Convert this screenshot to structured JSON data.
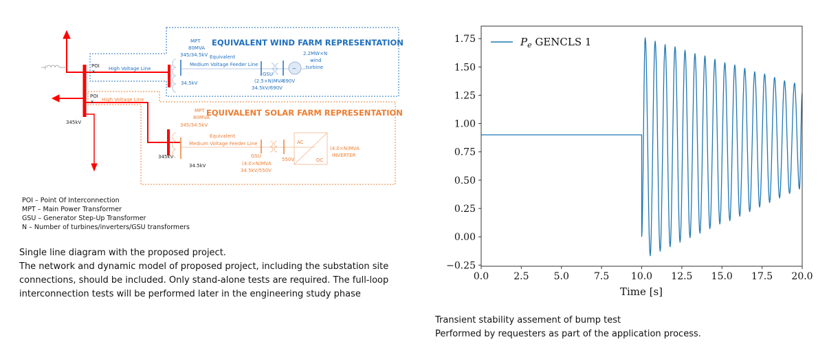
{
  "diagram": {
    "poi_top": "POI",
    "poi_bottom": "POI",
    "x_mark": "x",
    "hv_line_wind": "High Voltage Line",
    "hv_line_solar": "High Voltage Line",
    "bus_345kv_left": "345kV",
    "wind": {
      "title": "EQUIVALENT WIND FARM REPRESENTATION",
      "mpt": [
        "MPT",
        "80MVA",
        "345/34.5kV"
      ],
      "mv_bus": "34.5kV",
      "feeder": [
        "Equivalent",
        "Medium Voltage Feeder Line"
      ],
      "gsu": [
        "GSU",
        "(2.5×N)MVA",
        "34.5kV/690V"
      ],
      "lv_bus": "690V",
      "turbine": [
        "2.2MW×N",
        "wind",
        "turbine"
      ],
      "generator_symbol": "~"
    },
    "solar": {
      "title": "EQUIVALENT SOLAR FARM REPRESENTATION",
      "mpt": [
        "MPT",
        "80MVA",
        "345/34.5kV"
      ],
      "hv_bus": "345kV",
      "mv_bus": "34.5kV",
      "feeder": [
        "Equivalent",
        "Medium Voltage Feeder Line"
      ],
      "gsu": [
        "GSU",
        "(4.0×N)MVA",
        "34.5kV/550V"
      ],
      "lv_bus": "550V",
      "inverter_ac": "AC",
      "inverter_dc": "DC",
      "inverter": [
        "(4.0×N)MVA",
        "INVERTER"
      ]
    },
    "colors": {
      "wind": "#1f6fbf",
      "solar": "#ed7d31",
      "grid": "#ff0000"
    }
  },
  "abbreviations": [
    "POI – Point Of Interconnection",
    "MPT – Main Power Transformer",
    "GSU – Generator Step-Up Transformer",
    "N – Number of turbines/inverters/GSU transformers"
  ],
  "left_caption": [
    "Single line diagram with the proposed project.",
    "The network and dynamic model of proposed project, including the substation site",
    "connections, should be included. Only stand-alone tests are required. The full-loop",
    "interconnection tests will be performed later in the engineering study phase"
  ],
  "right_caption": [
    "Transient stability assement of bump test",
    "Performed by requesters as part of the application process."
  ],
  "chart_data": {
    "type": "line",
    "title": "",
    "xlabel": "Time [s]",
    "ylabel": "",
    "xlim": [
      0,
      20
    ],
    "ylim": [
      -0.26,
      1.86
    ],
    "xticks": [
      "0.0",
      "2.5",
      "5.0",
      "7.5",
      "10.0",
      "12.5",
      "15.0",
      "17.5",
      "20.0"
    ],
    "yticks": [
      "−0.25",
      "0.00",
      "0.25",
      "0.50",
      "0.75",
      "1.00",
      "1.25",
      "1.50",
      "1.75"
    ],
    "legend": {
      "label_main": "P",
      "label_sub": "e",
      "label_rest": " GENCLS 1",
      "placement": "top-left"
    },
    "color": "#1f77b4",
    "series": [
      {
        "name": "Pe GENCLS 1",
        "pre_disturbance": [
          [
            0,
            0.9
          ],
          [
            10,
            0.9
          ],
          [
            10,
            0.0
          ]
        ],
        "peaks_t": [
          10.22,
          10.84,
          11.46,
          12.08,
          12.7,
          13.32,
          13.94,
          14.56,
          15.18,
          15.8,
          16.42,
          17.04,
          17.66,
          18.28,
          18.9,
          19.52
        ],
        "peaks_v": [
          1.76,
          1.73,
          1.7,
          1.68,
          1.65,
          1.62,
          1.6,
          1.57,
          1.54,
          1.52,
          1.49,
          1.46,
          1.44,
          1.41,
          1.38,
          1.36
        ],
        "troughs_t": [
          10.53,
          11.15,
          11.77,
          12.39,
          13.01,
          13.63,
          14.25,
          14.87,
          15.49,
          16.11,
          16.73,
          17.35,
          17.97,
          18.59,
          19.21,
          19.83
        ],
        "troughs_v": [
          -0.17,
          -0.13,
          -0.09,
          -0.05,
          -0.01,
          0.03,
          0.07,
          0.11,
          0.14,
          0.18,
          0.22,
          0.26,
          0.3,
          0.34,
          0.38,
          0.42
        ],
        "end": [
          20.0,
          1.27
        ]
      }
    ]
  }
}
